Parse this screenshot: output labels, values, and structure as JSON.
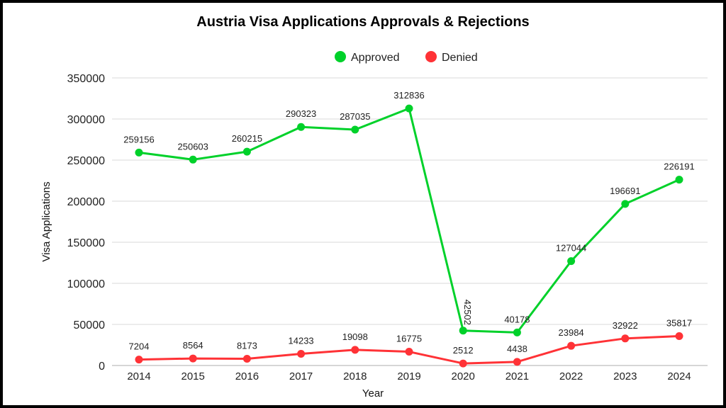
{
  "chart_data": {
    "type": "line",
    "title": "Austria Visa Applications Approvals & Rejections",
    "xlabel": "Year",
    "ylabel": "Visa Applications",
    "categories": [
      "2014",
      "2015",
      "2016",
      "2017",
      "2018",
      "2019",
      "2020",
      "2021",
      "2022",
      "2023",
      "2024"
    ],
    "yticks": [
      "0",
      "50000",
      "100000",
      "150000",
      "200000",
      "250000",
      "300000",
      "350000"
    ],
    "ylim": [
      0,
      350000
    ],
    "grid": true,
    "legend_position": "top",
    "series": [
      {
        "name": "Approved",
        "color": "#00d12a",
        "values": [
          259156,
          250603,
          260215,
          290323,
          287035,
          312836,
          42502,
          40178,
          127044,
          196691,
          226191
        ]
      },
      {
        "name": "Denied",
        "color": "#ff3236",
        "values": [
          7204,
          8564,
          8173,
          14233,
          19098,
          16775,
          2512,
          4438,
          23984,
          32922,
          35817
        ]
      }
    ]
  }
}
